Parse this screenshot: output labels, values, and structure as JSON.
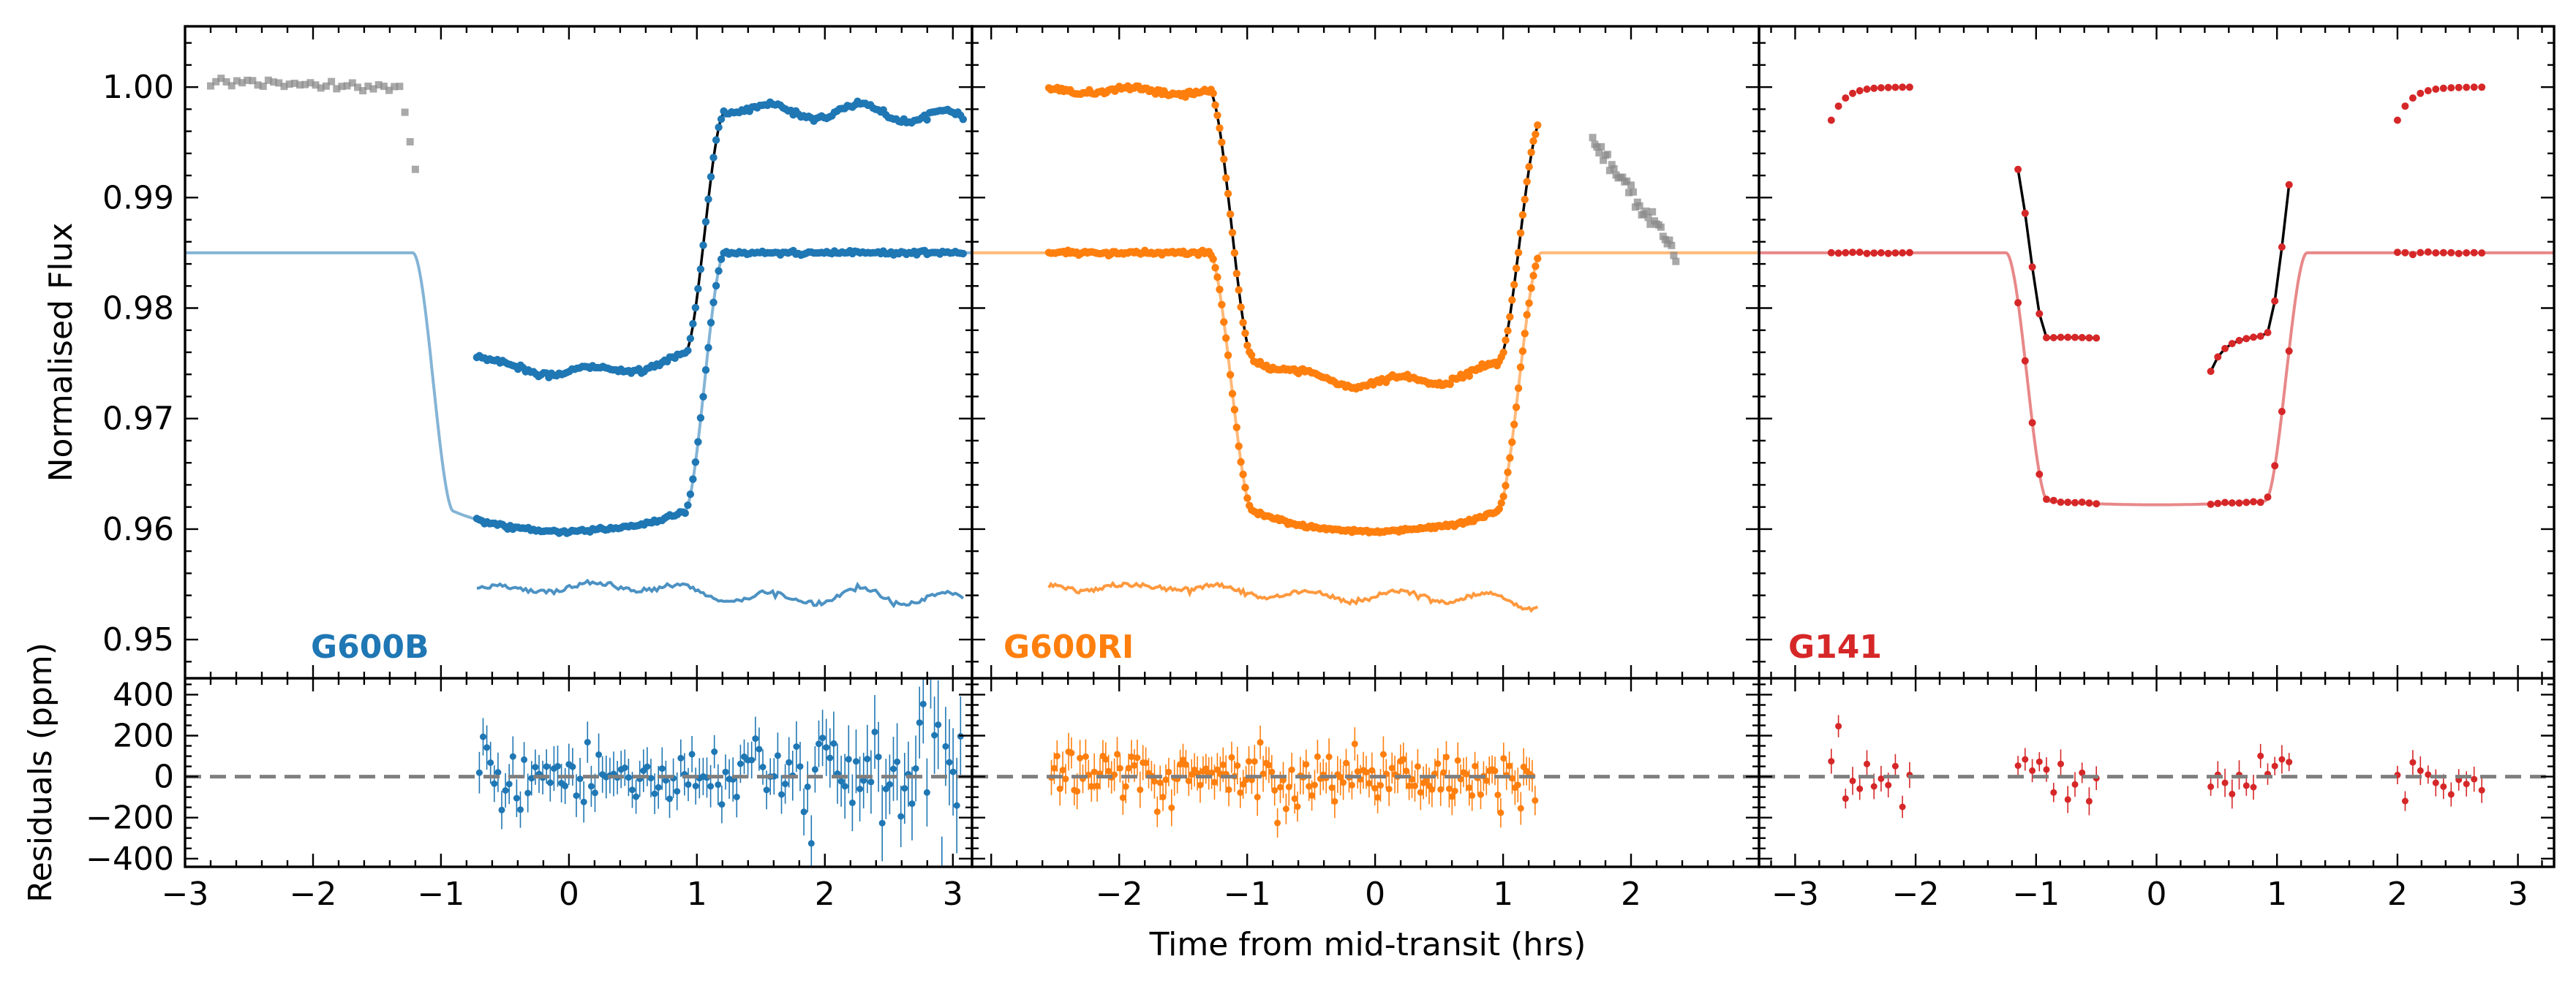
{
  "colors": {
    "g600b": "#1f77b4",
    "g600ri": "#ff7f0e",
    "g141": "#d62728",
    "raw_excluded": "#8c8c8c",
    "zero_line": "#7f7f7f",
    "model": "#000000"
  },
  "chart_data": {
    "type": "scatter",
    "title": "",
    "xlabel": "Time from mid-transit (hrs)",
    "ylabel_top": "Normalised Flux",
    "ylabel_bottom": "Residuals (ppm)",
    "ylim_top": [
      0.9465,
      1.0055
    ],
    "ylim_bottom": [
      -440,
      480
    ],
    "yticks_top": [
      "0.95",
      "0.96",
      "0.97",
      "0.98",
      "0.99",
      "1.00"
    ],
    "yticks_bottom": [
      "−400",
      "−200",
      "0",
      "200",
      "400"
    ],
    "series": [
      {
        "name": "G600B",
        "label": "G600B",
        "color_key": "g600b",
        "xlim": [
          -3.0,
          3.15
        ],
        "xticks": [
          "−3",
          "−2",
          "−1",
          "0",
          "1",
          "2",
          "3"
        ],
        "transit": {
          "depth": 0.0252,
          "t1": -1.22,
          "t2": -0.9,
          "limb": 0.22
        },
        "raw_offset": 0.0,
        "detrended_offset": -0.015,
        "residual_offset": -0.045,
        "x_start": -0.72,
        "x_end": 3.08,
        "n_points": 190,
        "systematic_amplitude": 0.0008,
        "excluded_points": {
          "x_start": -2.8,
          "x_end": -1.2,
          "flux": 0.9995
        },
        "residual_scatter_ppm": 110,
        "residual_error_ppm": 95,
        "residual_count": 130
      },
      {
        "name": "G600RI",
        "label": "G600RI",
        "color_key": "g600ri",
        "xlim": [
          -3.15,
          3.0
        ],
        "xticks": [
          "−2",
          "−1",
          "0",
          "1",
          "2"
        ],
        "transit": {
          "depth": 0.0252,
          "t1": -1.3,
          "t2": -0.95,
          "limb": 0.22
        },
        "raw_offset": 0.0,
        "detrended_offset": -0.015,
        "residual_offset": -0.045,
        "x_start": -2.55,
        "x_end": 1.27,
        "n_points": 230,
        "systematic_amplitude": 0.0006,
        "excluded_points": {
          "x_start": 1.7,
          "x_end": 2.35,
          "flux": 0.992
        },
        "residual_scatter_ppm": 70,
        "residual_error_ppm": 80,
        "residual_count": 170
      },
      {
        "name": "G141",
        "label": "G141",
        "color_key": "g141",
        "xlim": [
          -3.3,
          3.3
        ],
        "xticks": [
          "−3",
          "−2",
          "−1",
          "0",
          "1",
          "2",
          "3"
        ],
        "transit": {
          "depth": 0.0228,
          "t1": -1.25,
          "t2": -0.9,
          "limb": 0.05
        },
        "raw_offset": 0.0,
        "detrended_offset": -0.015,
        "orbits": [
          [
            -2.7,
            -2.05
          ],
          [
            -1.15,
            -0.5
          ],
          [
            0.45,
            1.1
          ],
          [
            2.0,
            2.7
          ]
        ],
        "points_per_orbit": 12,
        "residual_scatter_ppm": 70,
        "residual_error_ppm": 55
      }
    ]
  }
}
